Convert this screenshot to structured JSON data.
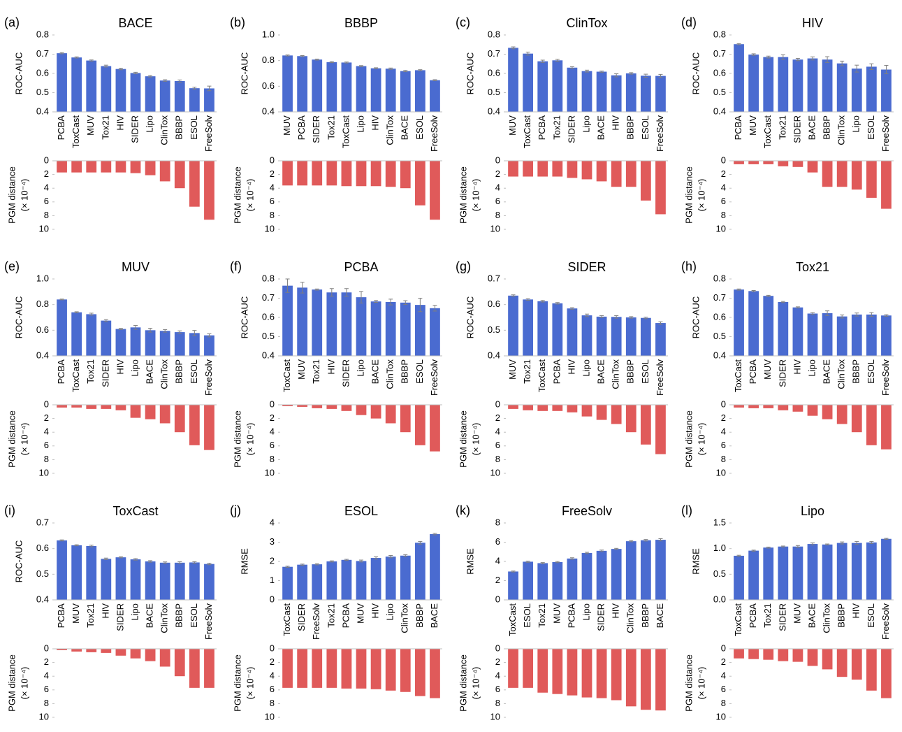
{
  "chart_data": [
    {
      "type": "bar",
      "panel": "(a)",
      "title": "BACE",
      "ylabel": "ROC-AUC",
      "color": "#4a6bd0",
      "categories": [
        "PCBA",
        "ToxCast",
        "MUV",
        "Tox21",
        "HIV",
        "SIDER",
        "Lipo",
        "ClinTox",
        "BBBP",
        "ESOL",
        "FreeSolv"
      ],
      "values": [
        0.705,
        0.683,
        0.667,
        0.638,
        0.623,
        0.602,
        0.585,
        0.563,
        0.56,
        0.523,
        0.522
      ],
      "errors": [
        0.003,
        0.003,
        0.003,
        0.005,
        0.004,
        0.004,
        0.004,
        0.004,
        0.006,
        0.005,
        0.012
      ],
      "ylim": [
        0.4,
        0.8
      ],
      "yticks": [
        0.4,
        0.5,
        0.6,
        0.7,
        0.8
      ]
    },
    {
      "type": "bar",
      "inverted": true,
      "ylabel": [
        "PGM distance",
        "(× 10⁻⁴)"
      ],
      "color": "#e05a5a",
      "values": [
        1.7,
        1.7,
        1.7,
        1.7,
        1.7,
        1.8,
        2.1,
        3.0,
        4.0,
        6.7,
        8.6
      ],
      "ylim": [
        0,
        10
      ],
      "yticks": [
        0,
        2,
        4,
        6,
        8,
        10
      ]
    },
    {
      "type": "bar",
      "panel": "(b)",
      "title": "BBBP",
      "ylabel": "ROC-AUC",
      "color": "#4a6bd0",
      "categories": [
        "MUV",
        "PCBA",
        "SIDER",
        "Tox21",
        "ToxCast",
        "Lipo",
        "HIV",
        "ClinTox",
        "BACE",
        "ESOL",
        "FreeSolv"
      ],
      "values": [
        0.84,
        0.835,
        0.808,
        0.788,
        0.785,
        0.757,
        0.74,
        0.737,
        0.718,
        0.725,
        0.647
      ],
      "errors": [
        0.004,
        0.004,
        0.004,
        0.004,
        0.004,
        0.004,
        0.004,
        0.005,
        0.005,
        0.004,
        0.004
      ],
      "ylim": [
        0.4,
        1.0
      ],
      "yticks": [
        0.4,
        0.6,
        0.8,
        {
          "value": 1,
          "label": "1.0"
        }
      ]
    },
    {
      "type": "bar",
      "inverted": true,
      "ylabel": [
        "PGM distance",
        "(× 10⁻⁴)"
      ],
      "color": "#e05a5a",
      "values": [
        3.6,
        3.6,
        3.6,
        3.6,
        3.7,
        3.7,
        3.7,
        3.8,
        4.0,
        6.5,
        8.6
      ],
      "ylim": [
        0,
        10
      ],
      "yticks": [
        0,
        2,
        4,
        6,
        8,
        10
      ]
    },
    {
      "type": "bar",
      "panel": "(c)",
      "title": "ClinTox",
      "ylabel": "ROC-AUC",
      "color": "#4a6bd0",
      "categories": [
        "MUV",
        "ToxCast",
        "PCBA",
        "Tox21",
        "SIDER",
        "Lipo",
        "BACE",
        "HIV",
        "BBBP",
        "ESOL",
        "FreeSolv"
      ],
      "values": [
        0.733,
        0.703,
        0.663,
        0.668,
        0.63,
        0.612,
        0.609,
        0.59,
        0.6,
        0.588,
        0.587
      ],
      "errors": [
        0.005,
        0.008,
        0.006,
        0.005,
        0.005,
        0.005,
        0.003,
        0.008,
        0.004,
        0.008,
        0.008
      ],
      "ylim": [
        0.4,
        0.8
      ],
      "yticks": [
        0.4,
        0.5,
        0.6,
        0.7,
        0.8
      ]
    },
    {
      "type": "bar",
      "inverted": true,
      "ylabel": [
        "PGM distance",
        "(× 10⁻⁴)"
      ],
      "color": "#e05a5a",
      "values": [
        2.3,
        2.3,
        2.3,
        2.3,
        2.5,
        2.7,
        3.0,
        3.8,
        3.8,
        5.8,
        7.8
      ],
      "ylim": [
        0,
        10
      ],
      "yticks": [
        0,
        2,
        4,
        6,
        8,
        10
      ]
    },
    {
      "type": "bar",
      "panel": "(d)",
      "title": "HIV",
      "ylabel": "ROC-AUC",
      "color": "#4a6bd0",
      "categories": [
        "PCBA",
        "MUV",
        "ToxCast",
        "Tox21",
        "SIDER",
        "BACE",
        "BBBP",
        "ClinTox",
        "Lipo",
        "ESOL",
        "FreeSolv"
      ],
      "values": [
        0.752,
        0.698,
        0.685,
        0.685,
        0.672,
        0.678,
        0.672,
        0.652,
        0.625,
        0.635,
        0.62
      ],
      "errors": [
        0.003,
        0.004,
        0.005,
        0.012,
        0.006,
        0.008,
        0.015,
        0.012,
        0.018,
        0.015,
        0.022
      ],
      "ylim": [
        0.4,
        0.8
      ],
      "yticks": [
        0.4,
        0.5,
        0.6,
        0.7,
        0.8
      ]
    },
    {
      "type": "bar",
      "inverted": true,
      "ylabel": [
        "PGM distance",
        "(× 10⁻⁴)"
      ],
      "color": "#e05a5a",
      "values": [
        0.5,
        0.5,
        0.5,
        0.8,
        0.9,
        1.7,
        3.8,
        3.8,
        4.2,
        5.4,
        7.0
      ],
      "ylim": [
        0,
        10
      ],
      "yticks": [
        0,
        2,
        4,
        6,
        8,
        10
      ]
    },
    {
      "type": "bar",
      "panel": "(e)",
      "title": "MUV",
      "ylabel": "ROC-AUC",
      "color": "#4a6bd0",
      "categories": [
        "PCBA",
        "ToxCast",
        "Tox21",
        "SIDER",
        "HIV",
        "Lipo",
        "BACE",
        "ClinTox",
        "BBBP",
        "ESOL",
        "FreeSolv"
      ],
      "values": [
        0.84,
        0.74,
        0.725,
        0.675,
        0.61,
        0.622,
        0.6,
        0.595,
        0.585,
        0.578,
        0.56
      ],
      "errors": [
        0.003,
        0.004,
        0.008,
        0.008,
        0.004,
        0.015,
        0.015,
        0.01,
        0.01,
        0.02,
        0.012
      ],
      "ylim": [
        0.4,
        1.0
      ],
      "yticks": [
        0.4,
        0.6,
        0.8,
        {
          "value": 1,
          "label": "1.0"
        }
      ]
    },
    {
      "type": "bar",
      "inverted": true,
      "ylabel": [
        "PGM distance",
        "(× 10⁻⁴)"
      ],
      "color": "#e05a5a",
      "values": [
        0.4,
        0.4,
        0.6,
        0.6,
        0.8,
        1.9,
        2.1,
        2.7,
        4.0,
        5.9,
        6.6
      ],
      "ylim": [
        0,
        10
      ],
      "yticks": [
        0,
        2,
        4,
        6,
        8,
        10
      ]
    },
    {
      "type": "bar",
      "panel": "(f)",
      "title": "PCBA",
      "ylabel": "ROC-AUC",
      "color": "#4a6bd0",
      "categories": [
        "ToxCast",
        "MUV",
        "Tox21",
        "HIV",
        "SIDER",
        "Lipo",
        "BACE",
        "ClinTox",
        "BBBP",
        "ESOL",
        "FreeSolv"
      ],
      "values": [
        0.765,
        0.755,
        0.745,
        0.73,
        0.73,
        0.705,
        0.683,
        0.68,
        0.677,
        0.665,
        0.648
      ],
      "errors": [
        0.035,
        0.028,
        0.003,
        0.02,
        0.02,
        0.03,
        0.005,
        0.015,
        0.01,
        0.035,
        0.015
      ],
      "ylim": [
        0.4,
        0.8
      ],
      "yticks": [
        0.4,
        0.5,
        0.6,
        0.7,
        0.8
      ]
    },
    {
      "type": "bar",
      "inverted": true,
      "ylabel": [
        "PGM distance",
        "(× 10⁻⁴)"
      ],
      "color": "#e05a5a",
      "values": [
        0.2,
        0.3,
        0.5,
        0.6,
        0.9,
        1.5,
        2.0,
        2.7,
        4.0,
        5.9,
        6.8
      ],
      "ylim": [
        0,
        10
      ],
      "yticks": [
        0,
        2,
        4,
        6,
        8,
        10
      ]
    },
    {
      "type": "bar",
      "panel": "(g)",
      "title": "SIDER",
      "ylabel": "ROC-AUC",
      "color": "#4a6bd0",
      "categories": [
        "MUV",
        "Tox21",
        "ToxCast",
        "PCBA",
        "HIV",
        "Lipo",
        "BACE",
        "ClinTox",
        "BBBP",
        "ESOL",
        "FreeSolv"
      ],
      "values": [
        0.635,
        0.62,
        0.613,
        0.605,
        0.585,
        0.558,
        0.553,
        0.552,
        0.55,
        0.548,
        0.528
      ],
      "errors": [
        0.003,
        0.003,
        0.003,
        0.003,
        0.003,
        0.005,
        0.004,
        0.005,
        0.003,
        0.003,
        0.005
      ],
      "ylim": [
        0.4,
        0.7
      ],
      "yticks": [
        0.4,
        0.5,
        0.6,
        0.7
      ]
    },
    {
      "type": "bar",
      "inverted": true,
      "ylabel": [
        "PGM distance",
        "(× 10⁻⁴)"
      ],
      "color": "#e05a5a",
      "values": [
        0.6,
        0.8,
        0.9,
        0.9,
        1.1,
        1.7,
        2.2,
        2.8,
        4.0,
        5.8,
        7.2
      ],
      "ylim": [
        0,
        10
      ],
      "yticks": [
        0,
        2,
        4,
        6,
        8,
        10
      ]
    },
    {
      "type": "bar",
      "panel": "(h)",
      "title": "Tox21",
      "ylabel": "ROC-AUC",
      "color": "#4a6bd0",
      "categories": [
        "ToxCast",
        "PCBA",
        "MUV",
        "SIDER",
        "HIV",
        "Lipo",
        "BACE",
        "ClinTox",
        "BBBP",
        "ESOL",
        "FreeSolv"
      ],
      "values": [
        0.745,
        0.737,
        0.712,
        0.68,
        0.652,
        0.62,
        0.622,
        0.605,
        0.615,
        0.615,
        0.61
      ],
      "errors": [
        0.003,
        0.003,
        0.003,
        0.003,
        0.003,
        0.005,
        0.012,
        0.008,
        0.008,
        0.01,
        0.004
      ],
      "ylim": [
        0.4,
        0.8
      ],
      "yticks": [
        0.4,
        0.5,
        0.6,
        0.7,
        0.8
      ]
    },
    {
      "type": "bar",
      "inverted": true,
      "ylabel": [
        "PGM distance",
        "(× 10⁻⁴)"
      ],
      "color": "#e05a5a",
      "values": [
        0.4,
        0.5,
        0.5,
        0.8,
        1.0,
        1.6,
        2.1,
        2.8,
        4.0,
        5.9,
        6.5
      ],
      "ylim": [
        0,
        10
      ],
      "yticks": [
        0,
        2,
        4,
        6,
        8,
        10
      ]
    },
    {
      "type": "bar",
      "panel": "(i)",
      "title": "ToxCast",
      "ylabel": "ROC-AUC",
      "color": "#4a6bd0",
      "categories": [
        "PCBA",
        "MUV",
        "Tox21",
        "HIV",
        "SIDER",
        "Lipo",
        "BACE",
        "ClinTox",
        "BBBP",
        "ESOL",
        "FreeSolv"
      ],
      "values": [
        0.632,
        0.613,
        0.61,
        0.56,
        0.566,
        0.558,
        0.55,
        0.545,
        0.545,
        0.546,
        0.54
      ],
      "errors": [
        0.002,
        0.002,
        0.003,
        0.003,
        0.002,
        0.003,
        0.003,
        0.003,
        0.004,
        0.003,
        0.003
      ],
      "ylim": [
        0.4,
        0.7
      ],
      "yticks": [
        0.4,
        0.5,
        0.6,
        0.7
      ]
    },
    {
      "type": "bar",
      "inverted": true,
      "ylabel": [
        "PGM distance",
        "(× 10⁻⁴)"
      ],
      "color": "#e05a5a",
      "values": [
        0.2,
        0.4,
        0.5,
        0.6,
        1.0,
        1.4,
        1.8,
        2.6,
        4.0,
        5.7,
        5.7
      ],
      "ylim": [
        0,
        10
      ],
      "yticks": [
        0,
        2,
        4,
        6,
        8,
        10
      ]
    },
    {
      "type": "bar",
      "panel": "(j)",
      "title": "ESOL",
      "ylabel": "RMSE",
      "color": "#4a6bd0",
      "categories": [
        "ToxCast",
        "SIDER",
        "FreeSolv",
        "Tox21",
        "PCBA",
        "MUV",
        "HIV",
        "Lipo",
        "ClinTox",
        "BBBP",
        "BACE"
      ],
      "values": [
        1.72,
        1.83,
        1.85,
        2.0,
        2.08,
        2.02,
        2.18,
        2.25,
        2.3,
        2.97,
        3.42
      ],
      "errors": [
        0.03,
        0.03,
        0.03,
        0.03,
        0.03,
        0.05,
        0.06,
        0.06,
        0.05,
        0.07,
        0.04
      ],
      "ylim": [
        0,
        4
      ],
      "yticks": [
        0,
        1,
        2,
        3,
        4
      ]
    },
    {
      "type": "bar",
      "inverted": true,
      "ylabel": [
        "PGM distance",
        "(× 10⁻⁴)"
      ],
      "color": "#e05a5a",
      "values": [
        5.7,
        5.7,
        5.7,
        5.7,
        5.8,
        5.8,
        5.9,
        6.1,
        6.3,
        6.9,
        7.2
      ],
      "ylim": [
        0,
        10
      ],
      "yticks": [
        0,
        2,
        4,
        6,
        8,
        10
      ]
    },
    {
      "type": "bar",
      "panel": "(k)",
      "title": "FreeSolv",
      "ylabel": "RMSE",
      "color": "#4a6bd0",
      "categories": [
        "ToxCast",
        "ESOL",
        "Tox21",
        "MUV",
        "PCBA",
        "Lipo",
        "SIDER",
        "HIV",
        "ClinTox",
        "BBBP",
        "BACE"
      ],
      "values": [
        2.95,
        3.97,
        3.82,
        3.93,
        4.3,
        4.88,
        5.1,
        5.3,
        6.1,
        6.2,
        6.25
      ],
      "errors": [
        0.05,
        0.06,
        0.06,
        0.06,
        0.08,
        0.07,
        0.08,
        0.06,
        0.06,
        0.08,
        0.12
      ],
      "ylim": [
        0,
        8
      ],
      "yticks": [
        0,
        2,
        4,
        6,
        8
      ]
    },
    {
      "type": "bar",
      "inverted": true,
      "ylabel": [
        "PGM distance",
        "(× 10⁻⁴)"
      ],
      "color": "#e05a5a",
      "values": [
        5.7,
        5.7,
        6.4,
        6.6,
        6.8,
        7.1,
        7.2,
        7.5,
        8.4,
        8.9,
        9.0
      ],
      "ylim": [
        0,
        10
      ],
      "yticks": [
        0,
        2,
        4,
        6,
        8,
        10
      ]
    },
    {
      "type": "bar",
      "panel": "(l)",
      "title": "Lipo",
      "ylabel": "RMSE",
      "color": "#4a6bd0",
      "categories": [
        "ToxCast",
        "PCBA",
        "Tox21",
        "SIDER",
        "MUV",
        "BACE",
        "ClinTox",
        "BBBP",
        "HIV",
        "ESOL",
        "FreeSolv"
      ],
      "values": [
        0.86,
        0.96,
        1.02,
        1.04,
        1.04,
        1.09,
        1.08,
        1.11,
        1.11,
        1.12,
        1.19
      ],
      "errors": [
        0.01,
        0.01,
        0.01,
        0.01,
        0.02,
        0.02,
        0.01,
        0.02,
        0.03,
        0.02,
        0.01
      ],
      "ylim": [
        0,
        1.5
      ],
      "yticks": [
        {
          "value": 0,
          "label": "0.0"
        },
        0.5,
        {
          "value": 1,
          "label": "1.0"
        },
        1.5
      ]
    },
    {
      "type": "bar",
      "inverted": true,
      "ylabel": [
        "PGM distance",
        "(× 10⁻⁴)"
      ],
      "color": "#e05a5a",
      "values": [
        1.4,
        1.5,
        1.6,
        1.8,
        1.9,
        2.5,
        3.0,
        4.1,
        4.5,
        6.1,
        7.2
      ],
      "ylim": [
        0,
        10
      ],
      "yticks": [
        0,
        2,
        4,
        6,
        8,
        10
      ]
    }
  ]
}
